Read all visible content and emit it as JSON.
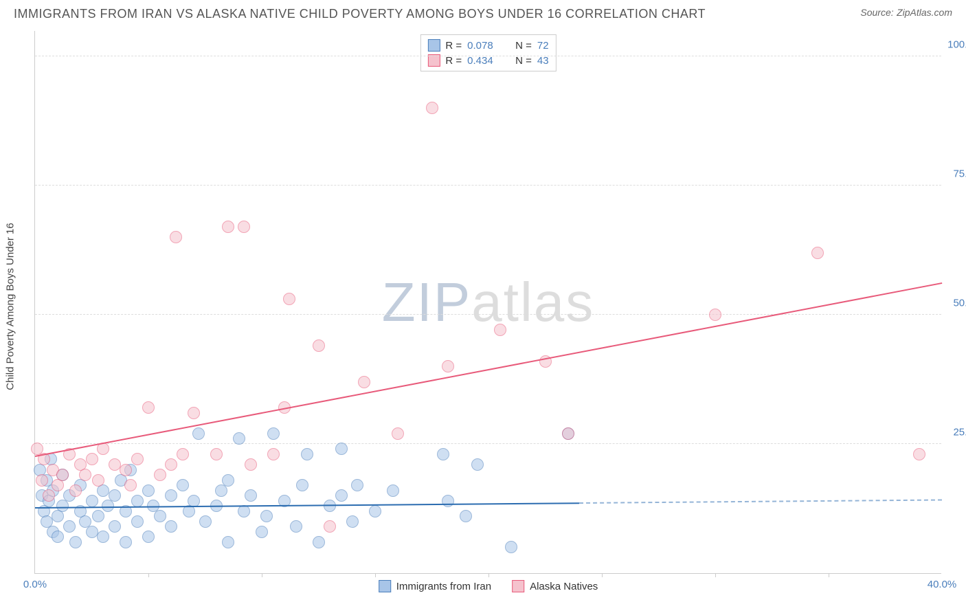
{
  "title": "IMMIGRANTS FROM IRAN VS ALASKA NATIVE CHILD POVERTY AMONG BOYS UNDER 16 CORRELATION CHART",
  "source_label": "Source:",
  "source_value": "ZipAtlas.com",
  "y_axis_label": "Child Poverty Among Boys Under 16",
  "watermark_a": "ZIP",
  "watermark_b": "atlas",
  "chart": {
    "type": "scatter",
    "background_color": "#ffffff",
    "grid_color": "#dddddd",
    "axis_color": "#cccccc",
    "tick_label_color": "#4a7ebb",
    "axis_label_color": "#444444",
    "title_color": "#555555",
    "title_fontsize": 18,
    "label_fontsize": 15,
    "tick_fontsize": 15,
    "xlim": [
      0,
      40
    ],
    "ylim": [
      0,
      105
    ],
    "x_ticks": [
      0,
      40
    ],
    "x_minor_ticks": [
      5,
      10,
      15,
      20,
      25,
      30,
      35
    ],
    "y_ticks": [
      25,
      50,
      75,
      100
    ],
    "x_tick_suffix": "%",
    "y_tick_suffix": "%",
    "point_radius": 9,
    "point_opacity": 0.55,
    "point_border_width": 1.2,
    "series": [
      {
        "key": "iran",
        "label": "Immigrants from Iran",
        "fill_color": "#a8c5e8",
        "border_color": "#4a7ebb",
        "r_value": "0.078",
        "n_value": "72",
        "trend": {
          "y_at_x0": 12.5,
          "y_at_x40": 14.0,
          "solid_until_x": 24,
          "color": "#2b6cb0",
          "width": 2
        },
        "points": [
          [
            0.2,
            20
          ],
          [
            0.3,
            15
          ],
          [
            0.4,
            12
          ],
          [
            0.5,
            18
          ],
          [
            0.5,
            10
          ],
          [
            0.6,
            14
          ],
          [
            0.7,
            22
          ],
          [
            0.8,
            8
          ],
          [
            0.8,
            16
          ],
          [
            1.0,
            11
          ],
          [
            1.0,
            7
          ],
          [
            1.2,
            13
          ],
          [
            1.2,
            19
          ],
          [
            1.5,
            9
          ],
          [
            1.5,
            15
          ],
          [
            1.8,
            6
          ],
          [
            2.0,
            12
          ],
          [
            2.0,
            17
          ],
          [
            2.2,
            10
          ],
          [
            2.5,
            14
          ],
          [
            2.5,
            8
          ],
          [
            2.8,
            11
          ],
          [
            3.0,
            16
          ],
          [
            3.0,
            7
          ],
          [
            3.2,
            13
          ],
          [
            3.5,
            9
          ],
          [
            3.5,
            15
          ],
          [
            3.8,
            18
          ],
          [
            4.0,
            12
          ],
          [
            4.0,
            6
          ],
          [
            4.2,
            20
          ],
          [
            4.5,
            14
          ],
          [
            4.5,
            10
          ],
          [
            5.0,
            16
          ],
          [
            5.0,
            7
          ],
          [
            5.2,
            13
          ],
          [
            5.5,
            11
          ],
          [
            6.0,
            15
          ],
          [
            6.0,
            9
          ],
          [
            6.5,
            17
          ],
          [
            6.8,
            12
          ],
          [
            7.0,
            14
          ],
          [
            7.2,
            27
          ],
          [
            7.5,
            10
          ],
          [
            8.0,
            13
          ],
          [
            8.2,
            16
          ],
          [
            8.5,
            18
          ],
          [
            8.5,
            6
          ],
          [
            9.0,
            26
          ],
          [
            9.2,
            12
          ],
          [
            9.5,
            15
          ],
          [
            10.0,
            8
          ],
          [
            10.2,
            11
          ],
          [
            10.5,
            27
          ],
          [
            11.0,
            14
          ],
          [
            11.5,
            9
          ],
          [
            11.8,
            17
          ],
          [
            12.0,
            23
          ],
          [
            12.5,
            6
          ],
          [
            13.0,
            13
          ],
          [
            13.5,
            15
          ],
          [
            13.5,
            24
          ],
          [
            14.0,
            10
          ],
          [
            14.2,
            17
          ],
          [
            15.0,
            12
          ],
          [
            15.8,
            16
          ],
          [
            18.0,
            23
          ],
          [
            18.2,
            14
          ],
          [
            19.0,
            11
          ],
          [
            19.5,
            21
          ],
          [
            21.0,
            5
          ],
          [
            23.5,
            27
          ]
        ]
      },
      {
        "key": "alaska",
        "label": "Alaska Natives",
        "fill_color": "#f5c2cd",
        "border_color": "#e85a7a",
        "r_value": "0.434",
        "n_value": "43",
        "trend": {
          "y_at_x0": 22.5,
          "y_at_x40": 56.0,
          "solid_until_x": 40,
          "color": "#e85a7a",
          "width": 2
        },
        "points": [
          [
            0.1,
            24
          ],
          [
            0.3,
            18
          ],
          [
            0.4,
            22
          ],
          [
            0.6,
            15
          ],
          [
            0.8,
            20
          ],
          [
            1.0,
            17
          ],
          [
            1.2,
            19
          ],
          [
            1.5,
            23
          ],
          [
            1.8,
            16
          ],
          [
            2.0,
            21
          ],
          [
            2.2,
            19
          ],
          [
            2.5,
            22
          ],
          [
            2.8,
            18
          ],
          [
            3.0,
            24
          ],
          [
            3.5,
            21
          ],
          [
            4.0,
            20
          ],
          [
            4.2,
            17
          ],
          [
            4.5,
            22
          ],
          [
            5.0,
            32
          ],
          [
            5.5,
            19
          ],
          [
            6.0,
            21
          ],
          [
            6.2,
            65
          ],
          [
            6.5,
            23
          ],
          [
            7.0,
            31
          ],
          [
            8.0,
            23
          ],
          [
            8.5,
            67
          ],
          [
            9.2,
            67
          ],
          [
            9.5,
            21
          ],
          [
            10.5,
            23
          ],
          [
            11.0,
            32
          ],
          [
            11.2,
            53
          ],
          [
            12.5,
            44
          ],
          [
            13.0,
            9
          ],
          [
            14.5,
            37
          ],
          [
            16.0,
            27
          ],
          [
            17.5,
            90
          ],
          [
            18.2,
            40
          ],
          [
            20.5,
            47
          ],
          [
            22.5,
            41
          ],
          [
            23.5,
            27
          ],
          [
            30.0,
            50
          ],
          [
            34.5,
            62
          ],
          [
            39.0,
            23
          ]
        ]
      }
    ],
    "legend_top": {
      "r_label": "R =",
      "n_label": "N ="
    }
  }
}
